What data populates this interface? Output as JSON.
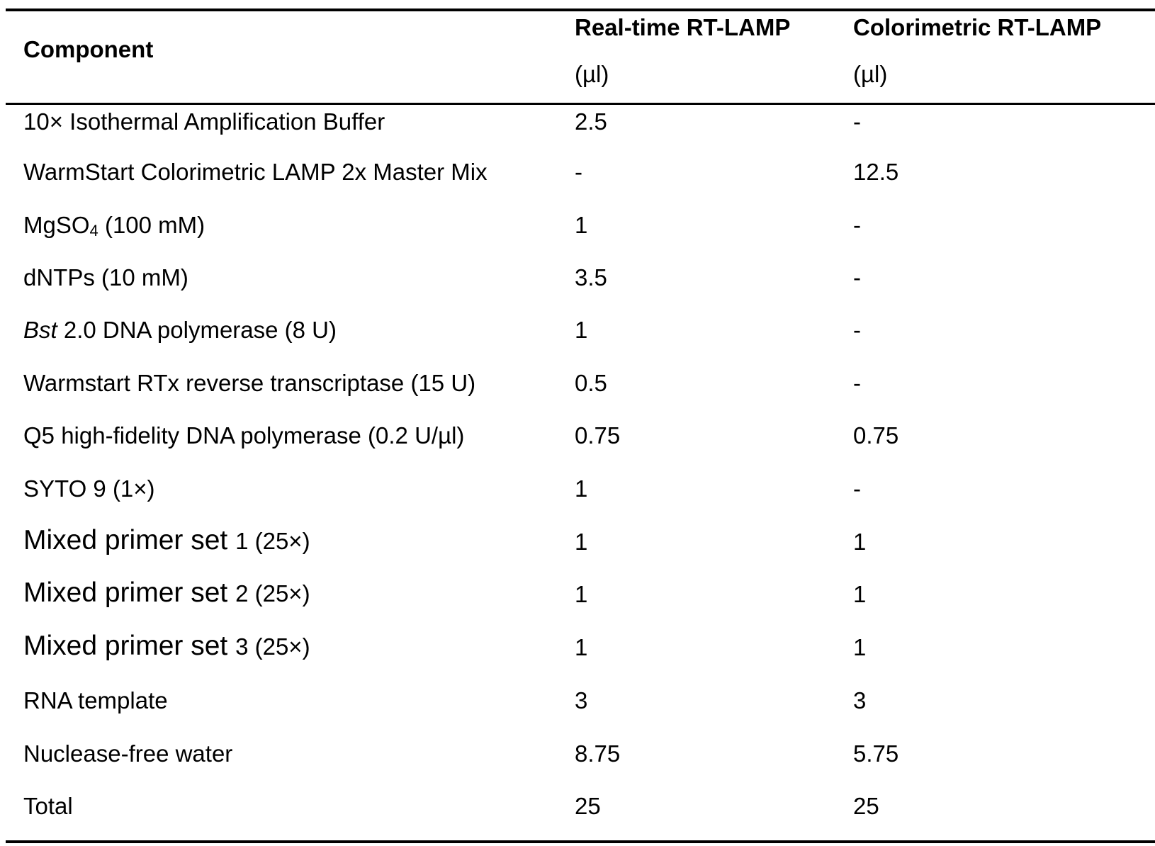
{
  "header": {
    "component": "Component",
    "realtime_title": "Real-time RT-LAMP",
    "realtime_unit": "(µl)",
    "colorimetric_title": "Colorimetric RT-LAMP",
    "colorimetric_unit": "(µl)"
  },
  "rows": [
    {
      "component": "10× Isothermal Amplification Buffer",
      "realtime": "2.5",
      "colorimetric": "-"
    },
    {
      "component": "WarmStart Colorimetric LAMP 2x Master Mix",
      "realtime": "-",
      "colorimetric": "12.5"
    },
    {
      "component_prefix": "MgSO",
      "component_sub": "4",
      "component_suffix": " (100 mM)",
      "realtime": "1",
      "colorimetric": "-"
    },
    {
      "component": "dNTPs (10 mM)",
      "realtime": "3.5",
      "colorimetric": "-"
    },
    {
      "component_italic": "Bst",
      "component_rest": " 2.0 DNA polymerase (8 U)",
      "realtime": "1",
      "colorimetric": "-"
    },
    {
      "component": "Warmstart RTx reverse transcriptase (15 U)",
      "realtime": "0.5",
      "colorimetric": "-"
    },
    {
      "component": "Q5 high-fidelity DNA polymerase (0.2 U/µl)",
      "realtime": "0.75",
      "colorimetric": "0.75"
    },
    {
      "component": "SYTO 9 (1×)",
      "realtime": "1",
      "colorimetric": "-"
    },
    {
      "component_big": "Mixed primer set ",
      "component_small": "1 (25×)",
      "realtime": "1",
      "colorimetric": "1"
    },
    {
      "component_big": "Mixed primer set ",
      "component_small": "2 (25×)",
      "realtime": "1",
      "colorimetric": "1"
    },
    {
      "component_big": "Mixed primer set ",
      "component_small": "3 (25×)",
      "realtime": "1",
      "colorimetric": "1"
    },
    {
      "component": "RNA template",
      "realtime": "3",
      "colorimetric": "3"
    },
    {
      "component": "Nuclease-free water",
      "realtime": "8.75",
      "colorimetric": "5.75"
    },
    {
      "component": "Total",
      "realtime": "25",
      "colorimetric": "25"
    }
  ]
}
